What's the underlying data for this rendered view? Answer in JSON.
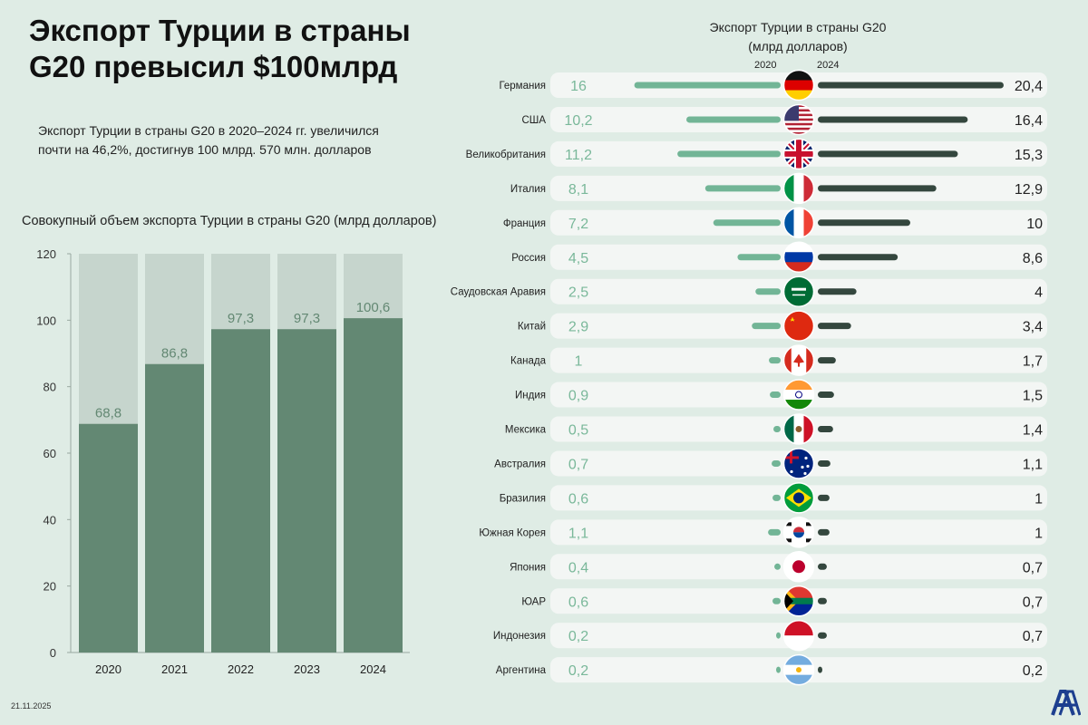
{
  "title_line1": "Экспорт Турции в страны",
  "title_line2": "G20 превысил $100млрд",
  "subtitle_line1": "Экспорт Турции в страны G20 в 2020–2024 гг. увеличился",
  "subtitle_line2": "почти на 46,2%, достигнув 100 млрд. 570 млн. долларов",
  "date": "21.11.2025",
  "logo": "AA",
  "colors": {
    "background": "#dfece5",
    "bar_track": "#c6d5cd",
    "bar_fill": "#638873",
    "bar_2020": "#72b596",
    "bar_2024": "#34473e",
    "row_bg": "#f3f6f4",
    "value_2020": "#7ab89a"
  },
  "chart_data": [
    {
      "type": "bar",
      "title": "Совокупный объем экспорта Турции в страны G20 (млрд долларов)",
      "categories": [
        "2020",
        "2021",
        "2022",
        "2023",
        "2024"
      ],
      "values": [
        68.8,
        86.8,
        97.3,
        97.3,
        100.6
      ],
      "value_labels": [
        "68,8",
        "86,8",
        "97,3",
        "97,3",
        "100,6"
      ],
      "ylim": [
        0,
        120
      ],
      "yticks": [
        0,
        20,
        40,
        60,
        80,
        100,
        120
      ],
      "grid": false
    },
    {
      "type": "bar",
      "title": "Экспорт Турции в страны G20",
      "subtitle": "(млрд долларов)",
      "series_labels": [
        "2020",
        "2024"
      ],
      "rows": [
        {
          "country": "Германия",
          "flag": "de",
          "v2020": 16,
          "l2020": "16",
          "v2024": 20.4,
          "l2024": "20,4"
        },
        {
          "country": "США",
          "flag": "us",
          "v2020": 10.2,
          "l2020": "10,2",
          "v2024": 16.4,
          "l2024": "16,4"
        },
        {
          "country": "Великобритания",
          "flag": "gb",
          "v2020": 11.2,
          "l2020": "11,2",
          "v2024": 15.3,
          "l2024": "15,3"
        },
        {
          "country": "Италия",
          "flag": "it",
          "v2020": 8.1,
          "l2020": "8,1",
          "v2024": 12.9,
          "l2024": "12,9"
        },
        {
          "country": "Франция",
          "flag": "fr",
          "v2020": 7.2,
          "l2020": "7,2",
          "v2024": 10,
          "l2024": "10"
        },
        {
          "country": "Россия",
          "flag": "ru",
          "v2020": 4.5,
          "l2020": "4,5",
          "v2024": 8.6,
          "l2024": "8,6"
        },
        {
          "country": "Саудовская Аравия",
          "flag": "sa",
          "v2020": 2.5,
          "l2020": "2,5",
          "v2024": 4,
          "l2024": "4"
        },
        {
          "country": "Китай",
          "flag": "cn",
          "v2020": 2.9,
          "l2020": "2,9",
          "v2024": 3.4,
          "l2024": "3,4"
        },
        {
          "country": "Канада",
          "flag": "ca",
          "v2020": 1,
          "l2020": "1",
          "v2024": 1.7,
          "l2024": "1,7"
        },
        {
          "country": "Индия",
          "flag": "in",
          "v2020": 0.9,
          "l2020": "0,9",
          "v2024": 1.5,
          "l2024": "1,5"
        },
        {
          "country": "Мексика",
          "flag": "mx",
          "v2020": 0.5,
          "l2020": "0,5",
          "v2024": 1.4,
          "l2024": "1,4"
        },
        {
          "country": "Австралия",
          "flag": "au",
          "v2020": 0.7,
          "l2020": "0,7",
          "v2024": 1.1,
          "l2024": "1,1"
        },
        {
          "country": "Бразилия",
          "flag": "br",
          "v2020": 0.6,
          "l2020": "0,6",
          "v2024": 1,
          "l2024": "1"
        },
        {
          "country": "Южная Корея",
          "flag": "kr",
          "v2020": 1.1,
          "l2020": "1,1",
          "v2024": 1,
          "l2024": "1"
        },
        {
          "country": "Япония",
          "flag": "jp",
          "v2020": 0.4,
          "l2020": "0,4",
          "v2024": 0.7,
          "l2024": "0,7"
        },
        {
          "country": "ЮАР",
          "flag": "za",
          "v2020": 0.6,
          "l2020": "0,6",
          "v2024": 0.7,
          "l2024": "0,7"
        },
        {
          "country": "Индонезия",
          "flag": "id",
          "v2020": 0.2,
          "l2020": "0,2",
          "v2024": 0.7,
          "l2024": "0,7"
        },
        {
          "country": "Аргентина",
          "flag": "ar",
          "v2020": 0.2,
          "l2020": "0,2",
          "v2024": 0.2,
          "l2024": "0,2"
        }
      ]
    }
  ]
}
